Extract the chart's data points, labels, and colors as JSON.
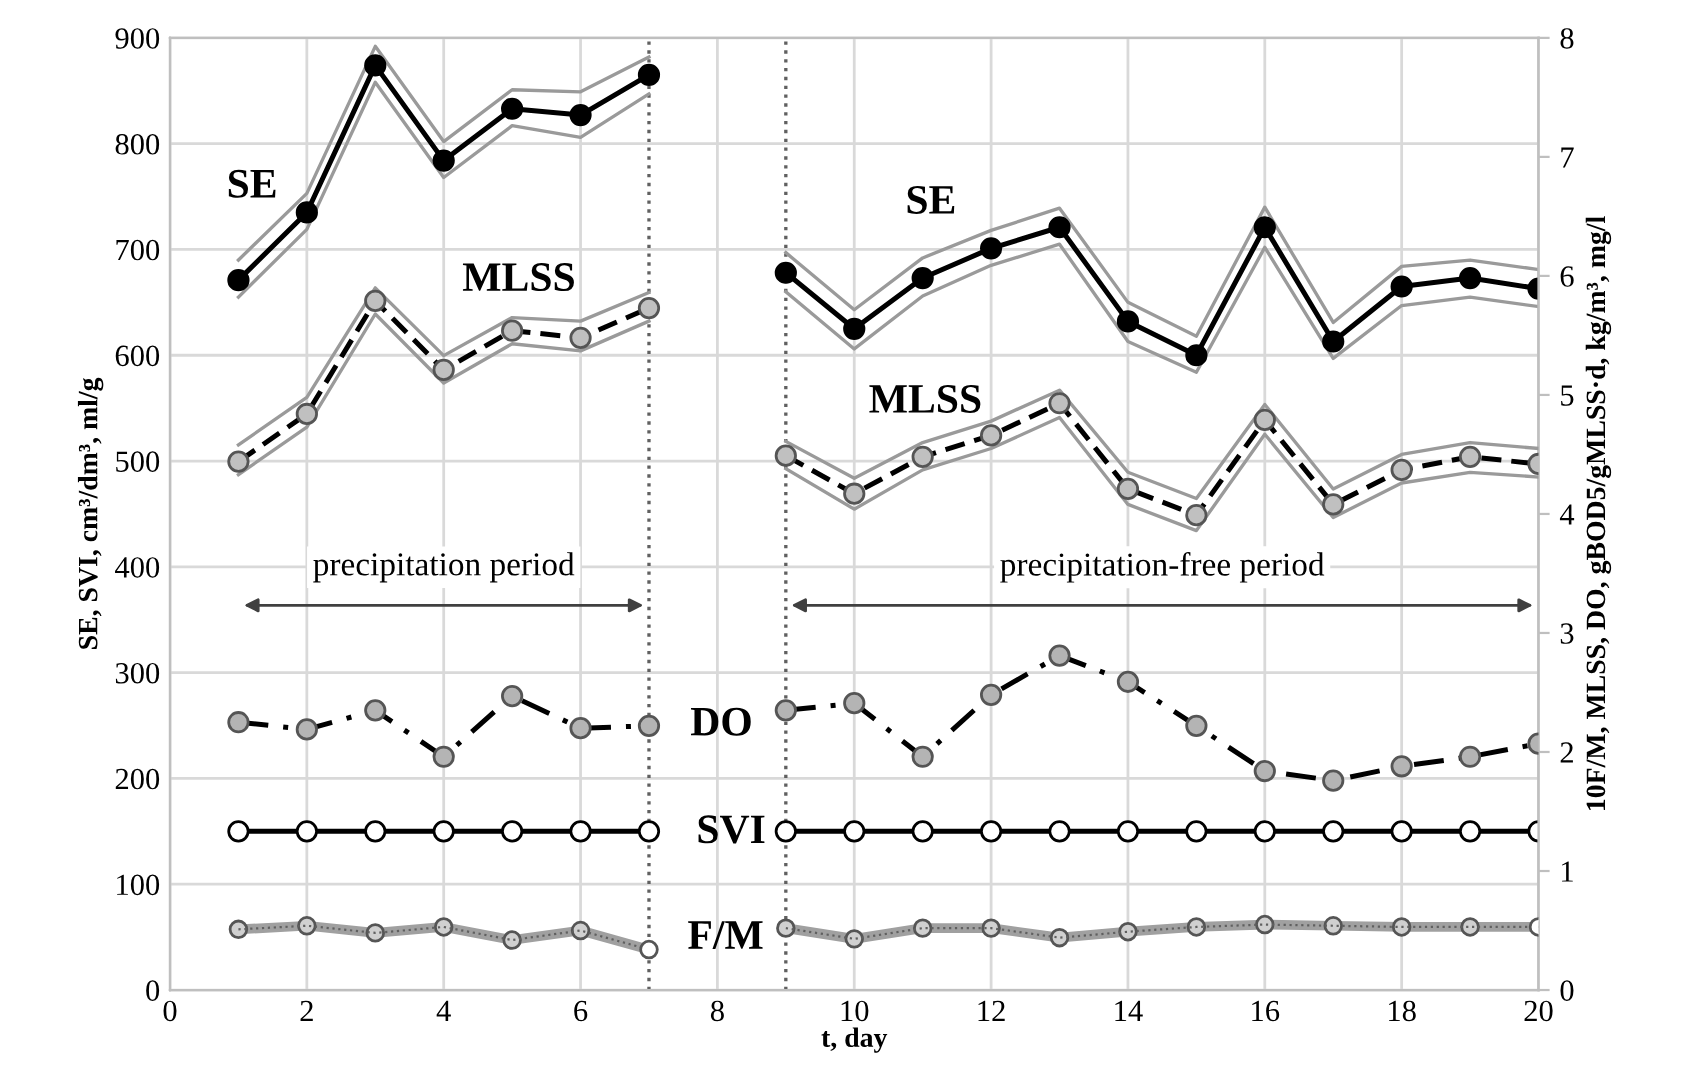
{
  "chart_data": {
    "type": "line",
    "xlabel": "t, day",
    "ylabel": "SE, SVI, cm³/dm³, ml/g",
    "y2label": "10F/M, MLSS, DO, gBOD5/gMLSS·d, kg/m³, mg/l",
    "x": [
      1,
      2,
      3,
      4,
      5,
      6,
      7,
      8,
      9,
      10,
      11,
      12,
      13,
      14,
      15,
      16,
      17,
      18,
      19,
      20
    ],
    "xlim": [
      0,
      20
    ],
    "xticks": [
      0,
      2,
      4,
      6,
      8,
      10,
      12,
      14,
      16,
      18,
      20
    ],
    "ylim": [
      0,
      900
    ],
    "yticks": [
      0,
      100,
      200,
      300,
      400,
      500,
      600,
      700,
      800,
      900
    ],
    "y2lim": [
      0,
      8
    ],
    "y2ticks": [
      0,
      1,
      2,
      3,
      4,
      5,
      6,
      7,
      8
    ],
    "grid": true,
    "marker": "circle",
    "series": [
      {
        "color": "#9a9a9a",
        "line_style": "solid",
        "marker": "none",
        "values": [
          690,
          753,
          892,
          802,
          851,
          849,
          882,
          null,
          697,
          643,
          692,
          718,
          739,
          650,
          618,
          740,
          631,
          684,
          690,
          681
        ]
      },
      {
        "color": "#9a9a9a",
        "line_style": "solid",
        "marker": "none",
        "values": [
          655,
          719,
          858,
          768,
          817,
          806,
          847,
          null,
          660,
          606,
          656,
          685,
          705,
          613,
          584,
          702,
          597,
          647,
          655,
          646
        ]
      },
      {
        "color": "#9a9a9a",
        "line_style": "solid",
        "marker": "none",
        "axis": "y2",
        "values": [
          4.58,
          4.98,
          5.9,
          5.33,
          5.65,
          5.62,
          5.86,
          null,
          4.61,
          4.3,
          4.6,
          4.78,
          5.04,
          4.35,
          4.13,
          4.92,
          4.21,
          4.5,
          4.6,
          4.55
        ]
      },
      {
        "color": "#9a9a9a",
        "line_style": "solid",
        "marker": "none",
        "axis": "y2",
        "values": [
          4.33,
          4.73,
          5.68,
          5.1,
          5.43,
          5.37,
          5.62,
          null,
          4.38,
          4.04,
          4.37,
          4.55,
          4.81,
          4.08,
          3.86,
          4.67,
          3.97,
          4.26,
          4.35,
          4.31
        ]
      },
      {
        "name": "SE",
        "color": "#000000",
        "line_style": "solid",
        "colors": [
          "#000000",
          "#000000",
          "#000000",
          "#000000",
          "#000000",
          "#000000",
          "#000000",
          "#000000",
          "#000000",
          "#000000",
          "#000000",
          "#000000",
          "#000000",
          "#000000",
          "#000000",
          "#000000",
          "#000000",
          "#000000",
          "#000000",
          "#000000"
        ],
        "values": [
          671,
          735,
          874,
          784,
          833,
          827,
          865,
          null,
          678,
          625,
          673,
          701,
          721,
          632,
          600,
          721,
          613,
          665,
          673,
          663
        ]
      },
      {
        "name": "MLSS",
        "color": "#000000",
        "line_style": "dashed",
        "axis": "y2",
        "colors": [
          "#c0c0c0",
          "#c0c0c0",
          "#c0c0c0",
          "#c0c0c0",
          "#c0c0c0",
          "#c0c0c0",
          "#c0c0c0",
          "#c0c0c0",
          "#c0c0c0",
          "#c0c0c0",
          "#c0c0c0",
          "#c0c0c0",
          "#c0c0c0",
          "#c0c0c0",
          "#c0c0c0",
          "#c0c0c0",
          "#c0c0c0",
          "#c0c0c0",
          "#c0c0c0",
          "#c0c0c0"
        ],
        "values": [
          4.44,
          4.84,
          5.79,
          5.21,
          5.54,
          5.48,
          5.73,
          null,
          4.49,
          4.17,
          4.48,
          4.66,
          4.93,
          4.21,
          3.99,
          4.79,
          4.08,
          4.37,
          4.48,
          4.42
        ]
      },
      {
        "name": "DO",
        "color": "#000000",
        "line_style": "dashdot",
        "axis": "y2",
        "colors": [
          "#b4b4b4",
          "#b4b4b4",
          "#b4b4b4",
          "#b4b4b4",
          "#b4b4b4",
          "#b4b4b4",
          "#b4b4b4",
          "#b4b4b4",
          "#b4b4b4",
          "#b4b4b4",
          "#b4b4b4",
          "#b4b4b4",
          "#b4b4b4",
          "#b4b4b4",
          "#b4b4b4",
          "#b4b4b4",
          "#b4b4b4",
          "#b4b4b4",
          "#b4b4b4",
          "#b4b4b4"
        ],
        "values": [
          2.25,
          2.19,
          2.35,
          1.96,
          2.47,
          2.2,
          2.22,
          null,
          2.35,
          2.41,
          1.96,
          2.48,
          2.81,
          2.59,
          2.22,
          1.84,
          1.76,
          1.88,
          1.96,
          2.07
        ]
      },
      {
        "name": "SVI",
        "color": "#000000",
        "line_style": "solid",
        "colors": [
          "#ffffff",
          "#ffffff",
          "#ffffff",
          "#ffffff",
          "#ffffff",
          "#ffffff",
          "#ffffff",
          "#ffffff",
          "#ffffff",
          "#ffffff",
          "#ffffff",
          "#ffffff",
          "#ffffff",
          "#ffffff",
          "#ffffff",
          "#ffffff",
          "#ffffff",
          "#ffffff",
          "#ffffff",
          "#ffffff"
        ],
        "values": [
          150,
          150,
          150,
          150,
          150,
          150,
          150,
          null,
          150,
          150,
          150,
          150,
          150,
          150,
          150,
          150,
          150,
          150,
          150,
          150
        ]
      },
      {
        "name": "F/M",
        "color": "#a0a0a0",
        "line_style": "solid",
        "axis": "y2",
        "colors": [
          "#d0d0d0",
          "#d0d0d0",
          "#d0d0d0",
          "#d0d0d0",
          "#d0d0d0",
          "#d0d0d0",
          "#ffffff",
          "#ffffff",
          "#d0d0d0",
          "#d0d0d0",
          "#d0d0d0",
          "#d0d0d0",
          "#d0d0d0",
          "#d0d0d0",
          "#d0d0d0",
          "#d0d0d0",
          "#d0d0d0",
          "#d0d0d0",
          "#d0d0d0",
          "#ffffff"
        ],
        "values": [
          0.51,
          0.54,
          0.48,
          0.53,
          0.42,
          0.5,
          0.34,
          null,
          0.52,
          0.43,
          0.52,
          0.52,
          0.44,
          0.49,
          0.53,
          0.55,
          0.54,
          0.53,
          0.53,
          0.53
        ]
      }
    ],
    "ref_lines": [
      {
        "axis": "x",
        "value": 7,
        "line_style": "dotted",
        "color": "#606060"
      },
      {
        "axis": "x",
        "value": 9,
        "line_style": "dotted",
        "color": "#606060"
      }
    ],
    "annotations": [
      "precipitation period",
      "precipitation-free period"
    ]
  }
}
